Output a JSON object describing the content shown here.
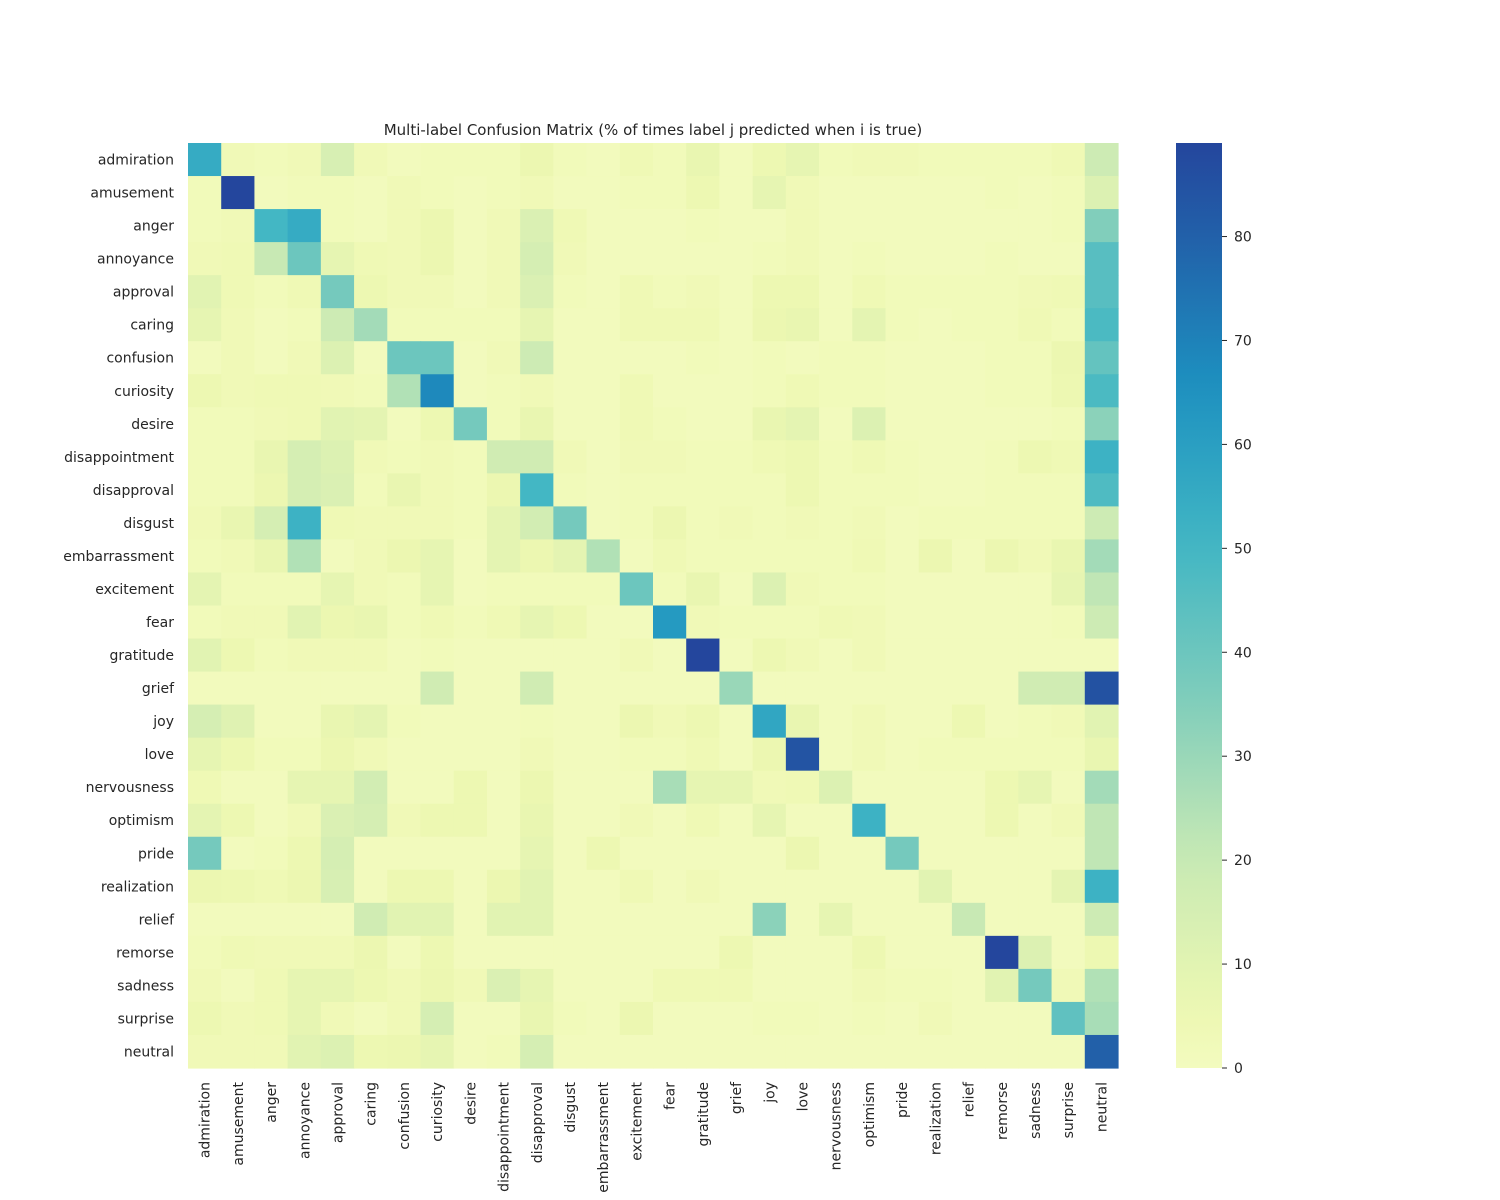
{
  "chart_data": {
    "type": "heatmap",
    "title": "Multi-label Confusion Matrix (% of times label j predicted when i is true)",
    "xlabel": "",
    "ylabel": "",
    "colormap": "YlGnBu",
    "zlim": [
      0,
      89
    ],
    "colorbar_ticks": [
      0,
      10,
      20,
      30,
      40,
      50,
      60,
      70,
      80
    ],
    "grid": false,
    "categories": [
      "admiration",
      "amusement",
      "anger",
      "annoyance",
      "approval",
      "caring",
      "confusion",
      "curiosity",
      "desire",
      "disappointment",
      "disapproval",
      "disgust",
      "embarrassment",
      "excitement",
      "fear",
      "gratitude",
      "grief",
      "joy",
      "love",
      "nervousness",
      "optimism",
      "pride",
      "realization",
      "relief",
      "remorse",
      "sadness",
      "surprise",
      "neutral"
    ],
    "matrix": [
      [
        55,
        3,
        2,
        3,
        14,
        3,
        1,
        2,
        2,
        2,
        6,
        2,
        1,
        4,
        2,
        7,
        1,
        5,
        8,
        2,
        3,
        3,
        2,
        2,
        2,
        2,
        4,
        18
      ],
      [
        2,
        89,
        1,
        2,
        2,
        1,
        3,
        2,
        1,
        2,
        3,
        1,
        1,
        2,
        2,
        5,
        1,
        8,
        3,
        1,
        1,
        1,
        1,
        1,
        2,
        1,
        2,
        12
      ],
      [
        2,
        3,
        50,
        55,
        2,
        1,
        3,
        6,
        1,
        3,
        13,
        4,
        1,
        1,
        1,
        2,
        1,
        1,
        3,
        1,
        1,
        1,
        1,
        1,
        1,
        1,
        2,
        35
      ],
      [
        3,
        4,
        20,
        40,
        8,
        4,
        3,
        6,
        1,
        3,
        15,
        3,
        1,
        1,
        1,
        1,
        1,
        2,
        3,
        1,
        2,
        1,
        1,
        1,
        2,
        1,
        1,
        45
      ],
      [
        10,
        4,
        2,
        4,
        38,
        5,
        3,
        3,
        1,
        3,
        13,
        2,
        1,
        4,
        2,
        3,
        1,
        5,
        5,
        1,
        4,
        2,
        2,
        2,
        2,
        3,
        4,
        45
      ],
      [
        8,
        3,
        1,
        2,
        18,
        28,
        2,
        2,
        2,
        2,
        8,
        1,
        1,
        4,
        4,
        4,
        1,
        6,
        7,
        1,
        9,
        2,
        1,
        2,
        2,
        4,
        2,
        48
      ],
      [
        1,
        3,
        1,
        3,
        12,
        1,
        40,
        40,
        1,
        3,
        18,
        1,
        1,
        1,
        1,
        2,
        1,
        2,
        1,
        2,
        2,
        1,
        1,
        1,
        2,
        2,
        6,
        42
      ],
      [
        5,
        3,
        4,
        4,
        3,
        2,
        25,
        68,
        1,
        2,
        3,
        1,
        1,
        4,
        1,
        1,
        1,
        2,
        4,
        2,
        2,
        1,
        1,
        1,
        2,
        2,
        5,
        48
      ],
      [
        2,
        2,
        3,
        4,
        10,
        9,
        1,
        5,
        38,
        2,
        7,
        1,
        1,
        4,
        2,
        1,
        1,
        7,
        9,
        1,
        12,
        1,
        1,
        1,
        1,
        1,
        2,
        33
      ],
      [
        2,
        2,
        7,
        15,
        12,
        3,
        2,
        3,
        2,
        17,
        17,
        3,
        1,
        3,
        3,
        2,
        2,
        4,
        5,
        2,
        4,
        2,
        1,
        1,
        2,
        5,
        4,
        52
      ],
      [
        2,
        2,
        6,
        15,
        13,
        2,
        7,
        3,
        2,
        6,
        50,
        2,
        1,
        2,
        2,
        2,
        2,
        2,
        5,
        2,
        2,
        2,
        1,
        1,
        2,
        2,
        2,
        47
      ],
      [
        3,
        7,
        15,
        52,
        4,
        3,
        3,
        3,
        2,
        9,
        16,
        38,
        1,
        2,
        6,
        2,
        3,
        2,
        3,
        2,
        3,
        1,
        2,
        2,
        2,
        2,
        2,
        18
      ],
      [
        2,
        3,
        7,
        25,
        1,
        3,
        6,
        8,
        1,
        9,
        6,
        9,
        25,
        1,
        4,
        2,
        2,
        2,
        2,
        2,
        4,
        1,
        6,
        1,
        6,
        3,
        7,
        28
      ],
      [
        9,
        2,
        2,
        2,
        8,
        3,
        2,
        8,
        1,
        2,
        2,
        2,
        2,
        40,
        2,
        7,
        1,
        12,
        3,
        2,
        2,
        1,
        1,
        1,
        1,
        1,
        8,
        22
      ],
      [
        2,
        3,
        3,
        10,
        6,
        7,
        2,
        4,
        2,
        4,
        8,
        5,
        1,
        1,
        62,
        3,
        2,
        2,
        2,
        4,
        3,
        1,
        1,
        1,
        1,
        1,
        2,
        18
      ],
      [
        10,
        5,
        2,
        3,
        3,
        3,
        1,
        2,
        1,
        1,
        1,
        1,
        1,
        3,
        1,
        89,
        1,
        5,
        3,
        1,
        3,
        1,
        1,
        1,
        1,
        1,
        1,
        1
      ],
      [
        1,
        1,
        1,
        1,
        1,
        1,
        1,
        17,
        1,
        1,
        17,
        1,
        1,
        1,
        1,
        1,
        30,
        1,
        1,
        1,
        1,
        1,
        1,
        1,
        1,
        17,
        17,
        85
      ],
      [
        15,
        11,
        1,
        1,
        7,
        9,
        2,
        1,
        1,
        1,
        2,
        1,
        1,
        6,
        3,
        5,
        1,
        57,
        7,
        1,
        3,
        1,
        1,
        5,
        1,
        2,
        3,
        10
      ],
      [
        8,
        5,
        2,
        2,
        6,
        3,
        1,
        1,
        1,
        1,
        3,
        1,
        1,
        2,
        2,
        4,
        1,
        6,
        84,
        1,
        3,
        1,
        2,
        2,
        2,
        2,
        2,
        7
      ],
      [
        4,
        1,
        1,
        8,
        8,
        16,
        1,
        1,
        5,
        1,
        6,
        1,
        1,
        1,
        27,
        8,
        8,
        3,
        4,
        12,
        1,
        1,
        1,
        1,
        5,
        8,
        1,
        28
      ],
      [
        9,
        5,
        1,
        3,
        13,
        15,
        3,
        5,
        5,
        1,
        7,
        1,
        1,
        3,
        1,
        4,
        1,
        8,
        1,
        1,
        52,
        1,
        1,
        1,
        5,
        1,
        3,
        22
      ],
      [
        38,
        1,
        2,
        5,
        15,
        1,
        1,
        1,
        1,
        1,
        8,
        1,
        5,
        1,
        1,
        1,
        1,
        1,
        6,
        1,
        1,
        38,
        1,
        1,
        1,
        1,
        1,
        22
      ],
      [
        6,
        5,
        4,
        6,
        14,
        1,
        5,
        5,
        1,
        6,
        10,
        1,
        1,
        4,
        1,
        3,
        1,
        1,
        1,
        1,
        1,
        1,
        10,
        1,
        1,
        1,
        9,
        52
      ],
      [
        1,
        1,
        1,
        1,
        1,
        17,
        10,
        10,
        1,
        10,
        10,
        1,
        1,
        1,
        1,
        1,
        1,
        33,
        1,
        8,
        1,
        1,
        1,
        20,
        1,
        1,
        1,
        18
      ],
      [
        2,
        4,
        3,
        3,
        3,
        6,
        1,
        5,
        1,
        1,
        1,
        1,
        1,
        1,
        1,
        1,
        5,
        1,
        1,
        1,
        5,
        1,
        1,
        1,
        89,
        12,
        1,
        5
      ],
      [
        3,
        1,
        4,
        8,
        8,
        5,
        3,
        6,
        3,
        13,
        8,
        1,
        1,
        1,
        4,
        4,
        4,
        1,
        1,
        1,
        3,
        2,
        2,
        1,
        10,
        38,
        3,
        25
      ],
      [
        5,
        3,
        4,
        8,
        3,
        1,
        3,
        15,
        1,
        1,
        7,
        2,
        1,
        6,
        1,
        1,
        1,
        2,
        2,
        1,
        2,
        1,
        3,
        1,
        1,
        1,
        43,
        27
      ],
      [
        3,
        3,
        3,
        10,
        12,
        5,
        6,
        8,
        1,
        2,
        15,
        1,
        1,
        1,
        1,
        1,
        1,
        1,
        1,
        1,
        1,
        1,
        1,
        1,
        1,
        1,
        1,
        80
      ]
    ]
  }
}
